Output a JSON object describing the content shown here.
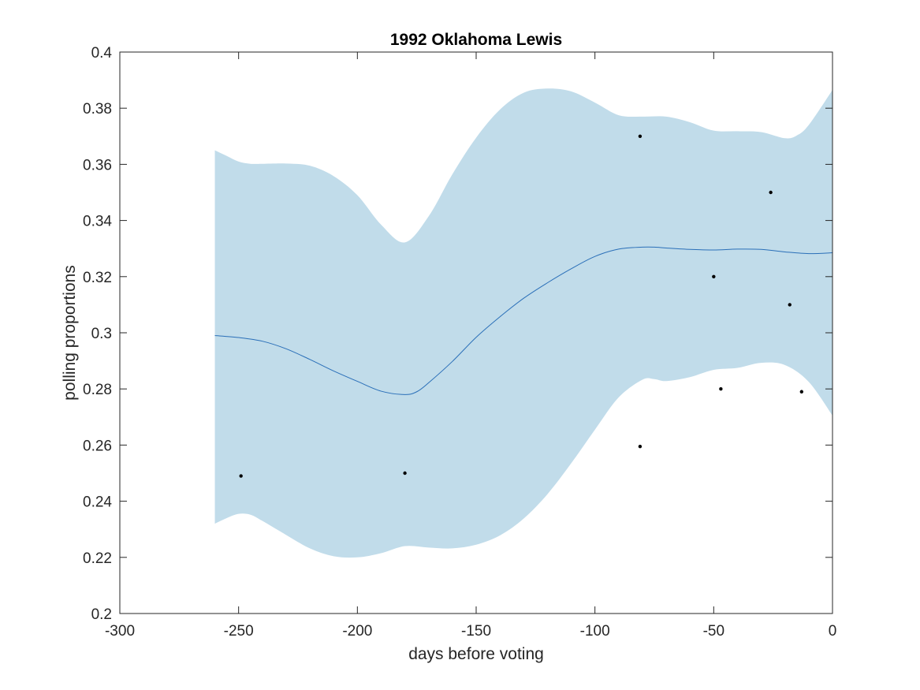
{
  "chart_data": {
    "type": "line",
    "title": "1992 Oklahoma Lewis",
    "xlabel": "days before voting",
    "ylabel": "polling proportions",
    "xlim": [
      -300,
      0
    ],
    "ylim": [
      0.2,
      0.4
    ],
    "xticks": [
      "-300",
      "-250",
      "-200",
      "-150",
      "-100",
      "-50",
      "0"
    ],
    "yticks": [
      "0.2",
      "0.22",
      "0.24",
      "0.26",
      "0.28",
      "0.3",
      "0.32",
      "0.34",
      "0.36",
      "0.38",
      "0.4"
    ],
    "grid": false,
    "colors": {
      "band": "#c1dcea",
      "line": "#2a6fb8",
      "points": "#000000",
      "axes": "#262626"
    },
    "trend": {
      "x": [
        -260,
        -250,
        -240,
        -230,
        -220,
        -210,
        -200,
        -190,
        -180,
        -175,
        -170,
        -160,
        -150,
        -140,
        -130,
        -120,
        -110,
        -100,
        -90,
        -80,
        -75,
        -70,
        -60,
        -50,
        -40,
        -30,
        -20,
        -10,
        0
      ],
      "y": [
        0.299,
        0.2983,
        0.297,
        0.2943,
        0.2905,
        0.2864,
        0.2827,
        0.2792,
        0.278,
        0.279,
        0.2822,
        0.2898,
        0.2984,
        0.3057,
        0.3123,
        0.3178,
        0.3228,
        0.3272,
        0.3298,
        0.3305,
        0.3305,
        0.3302,
        0.3297,
        0.3295,
        0.3298,
        0.3297,
        0.3288,
        0.3282,
        0.3285
      ]
    },
    "band_upper": {
      "x": [
        -260,
        -255,
        -250,
        -245,
        -240,
        -230,
        -220,
        -210,
        -200,
        -190,
        -180,
        -170,
        -160,
        -150,
        -140,
        -130,
        -120,
        -110,
        -100,
        -90,
        -80,
        -70,
        -60,
        -50,
        -40,
        -30,
        -20,
        -15,
        -10,
        0
      ],
      "y": [
        0.365,
        0.363,
        0.361,
        0.3602,
        0.3602,
        0.3603,
        0.3595,
        0.3558,
        0.349,
        0.3385,
        0.3322,
        0.3415,
        0.3565,
        0.3695,
        0.3795,
        0.3855,
        0.387,
        0.386,
        0.382,
        0.3775,
        0.377,
        0.377,
        0.375,
        0.372,
        0.3718,
        0.3715,
        0.3693,
        0.3703,
        0.374,
        0.3865
      ]
    },
    "band_lower": {
      "x": [
        -260,
        -255,
        -250,
        -245,
        -240,
        -230,
        -220,
        -210,
        -200,
        -190,
        -180,
        -170,
        -160,
        -150,
        -140,
        -130,
        -120,
        -110,
        -100,
        -90,
        -80,
        -75,
        -70,
        -60,
        -50,
        -40,
        -30,
        -20,
        -10,
        0
      ],
      "y": [
        0.232,
        0.234,
        0.2355,
        0.2352,
        0.233,
        0.228,
        0.2232,
        0.2204,
        0.22,
        0.2215,
        0.224,
        0.2235,
        0.2232,
        0.2245,
        0.2278,
        0.2338,
        0.2425,
        0.2535,
        0.2655,
        0.277,
        0.2833,
        0.2835,
        0.2828,
        0.2842,
        0.2868,
        0.2875,
        0.2893,
        0.2885,
        0.2825,
        0.2705
      ]
    },
    "points": {
      "x": [
        -249,
        -180,
        -81,
        -81,
        -50,
        -47,
        -26,
        -18,
        -13
      ],
      "y": [
        0.249,
        0.25,
        0.37,
        0.2595,
        0.32,
        0.28,
        0.35,
        0.31,
        0.279
      ]
    }
  }
}
